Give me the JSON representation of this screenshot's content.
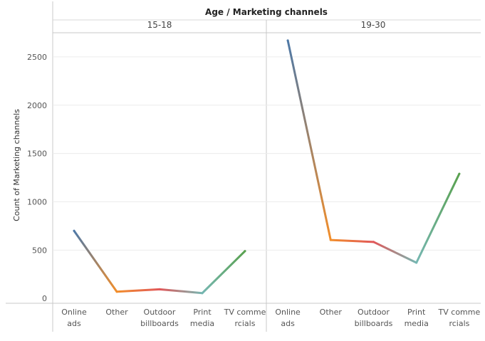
{
  "chart_data": {
    "type": "line",
    "title": "Age / Marketing channels",
    "ylabel": "Count of Marketing channels",
    "ylim": [
      -50,
      2750
    ],
    "yticks": [
      0,
      500,
      1000,
      1500,
      2000,
      2500
    ],
    "categories": [
      "Online ads",
      "Other",
      "Outdoor billboards",
      "Print media",
      "TV commercials"
    ],
    "category_tick_lines": [
      [
        "Online",
        "ads"
      ],
      [
        "Other"
      ],
      [
        "Outdoor",
        "billboards"
      ],
      [
        "Print",
        "media"
      ],
      [
        "TV comme",
        "rcials"
      ]
    ],
    "panels": [
      {
        "name": "15-18",
        "values": [
          700,
          70,
          95,
          55,
          490
        ]
      },
      {
        "name": "19-30",
        "values": [
          2670,
          605,
          585,
          370,
          1290
        ]
      }
    ],
    "colors": [
      "#4e79a7",
      "#f28e2b",
      "#e15759",
      "#76b7b2",
      "#59a14f"
    ],
    "grid": true,
    "legend": "none"
  }
}
